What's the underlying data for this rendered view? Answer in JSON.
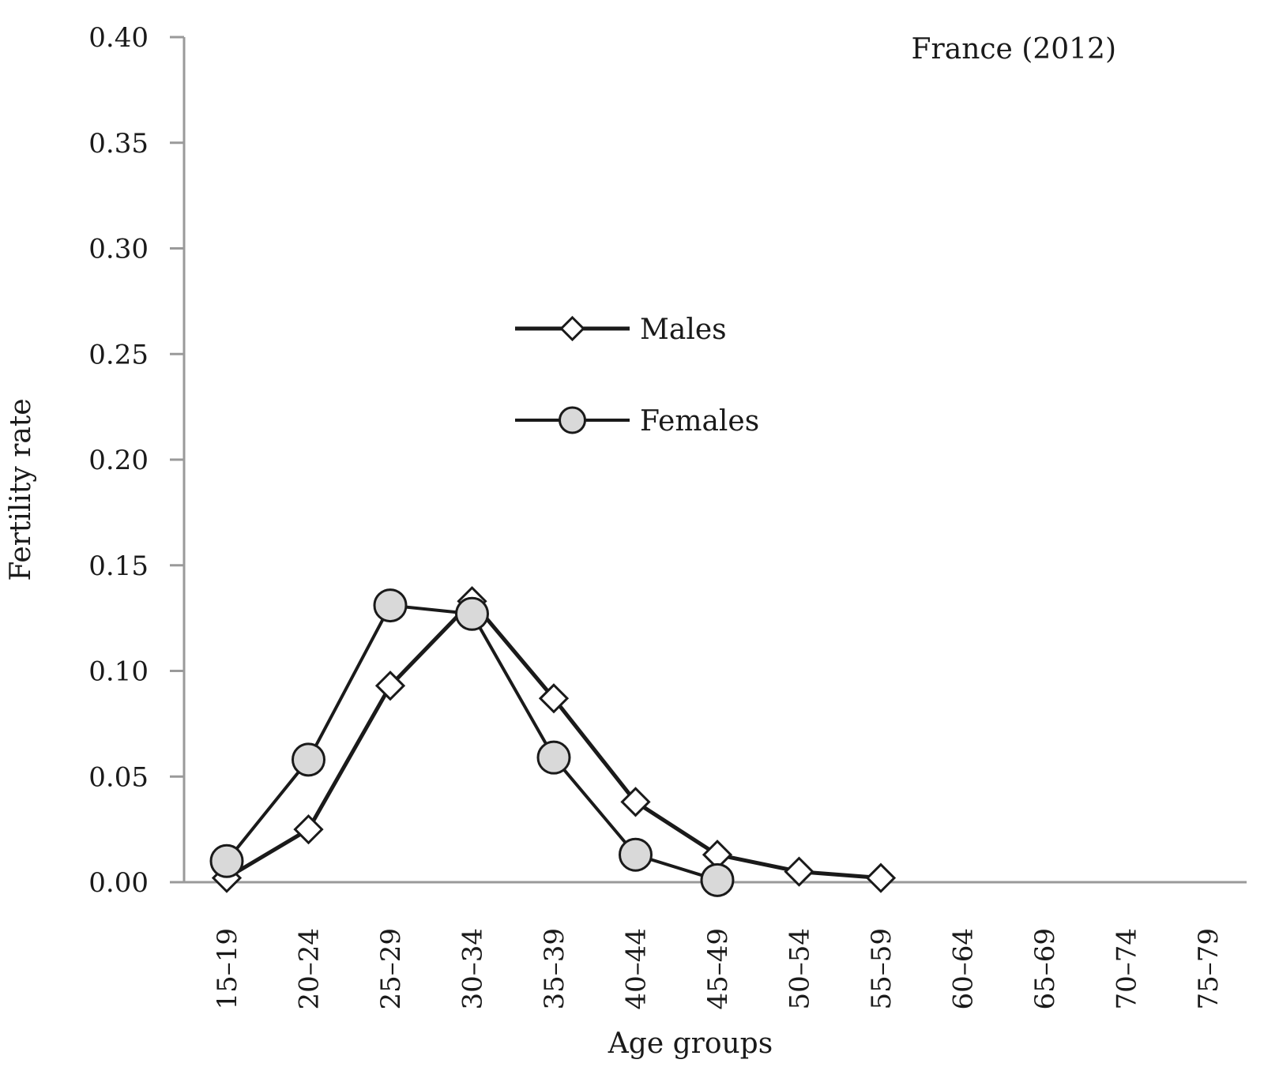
{
  "chart_data": {
    "type": "line",
    "annotation": "France (2012)",
    "xlabel": "Age groups",
    "ylabel": "Fertility rate",
    "categories": [
      "15–19",
      "20–24",
      "25–29",
      "30–34",
      "35–39",
      "40–44",
      "45–49",
      "50–54",
      "55–59",
      "60–64",
      "65–69",
      "70–74",
      "75–79"
    ],
    "ylim": [
      0,
      0.4
    ],
    "yticks": [
      "0.00",
      "0.05",
      "0.10",
      "0.15",
      "0.20",
      "0.25",
      "0.30",
      "0.35",
      "0.40"
    ],
    "grid": false,
    "legend_placement": "center-left",
    "series": [
      {
        "name": "Males",
        "marker": "diamond",
        "marker_fill": "#ffffff",
        "line_color": "#1a1a1a",
        "values": [
          0.002,
          0.025,
          0.093,
          0.133,
          0.087,
          0.038,
          0.013,
          0.005,
          0.002,
          null,
          null,
          null,
          null
        ]
      },
      {
        "name": "Females",
        "marker": "circle",
        "marker_fill": "#d9d9d9",
        "line_color": "#1a1a1a",
        "values": [
          0.01,
          0.058,
          0.131,
          0.127,
          0.059,
          0.013,
          0.001,
          null,
          null,
          null,
          null,
          null,
          null
        ]
      }
    ],
    "colors": {
      "axis": "#9a9a9a",
      "line": "#1a1a1a"
    }
  }
}
